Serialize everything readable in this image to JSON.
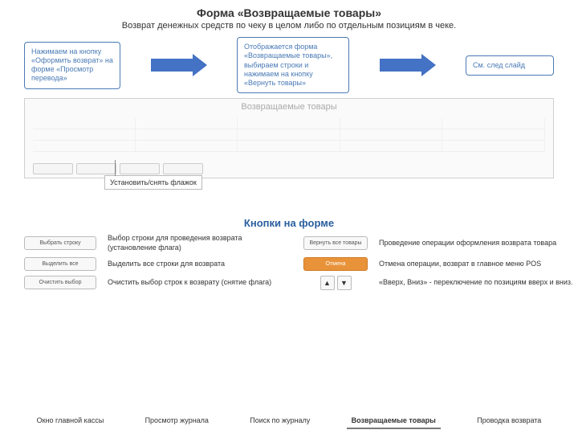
{
  "title": "Форма «Возвращаемые товары»",
  "subtitle": "Возврат денежных средств по чеку в целом либо по отдельным позициям в чеке.",
  "flow": {
    "step1": "Нажимаем на кнопку «Оформить возврат» на форме «Просмотр перевода»",
    "step2": "Отображается форма «Возвращаемые товары», выбираем строки и нажимаем на кнопку «Вернуть товары»",
    "step3": "См. след слайд"
  },
  "screenshot": {
    "heading": "Возвращаемые товары"
  },
  "callout": "Установить/снять флажок",
  "section2_title": "Кнопки на форме",
  "buttons": [
    {
      "btn": "Выбрать строку",
      "desc": "Выбор строки для проведения возврата (установление флага)",
      "btn2": "Вернуть все товары",
      "desc2": "Проведение операции оформления возврата товара"
    },
    {
      "btn": "Выделить все",
      "desc": "Выделить все строки для возврата",
      "btn2": "Отмена",
      "desc2": "Отмена операции, возврат в главное меню POS"
    },
    {
      "btn": "Очистить выбор",
      "desc": "Очистить выбор строк к возврату (снятие флага)",
      "btn2": "arrows",
      "desc2": "«Вверх, Вниз» - переключение по позициям вверх и вниз."
    }
  ],
  "tabs": [
    "Окно главной кассы",
    "Просмотр журнала",
    "Поиск по журналу",
    "Возвращаемые товары",
    "Проводка возврата"
  ],
  "arrow_up": "▲",
  "arrow_down": "▼"
}
